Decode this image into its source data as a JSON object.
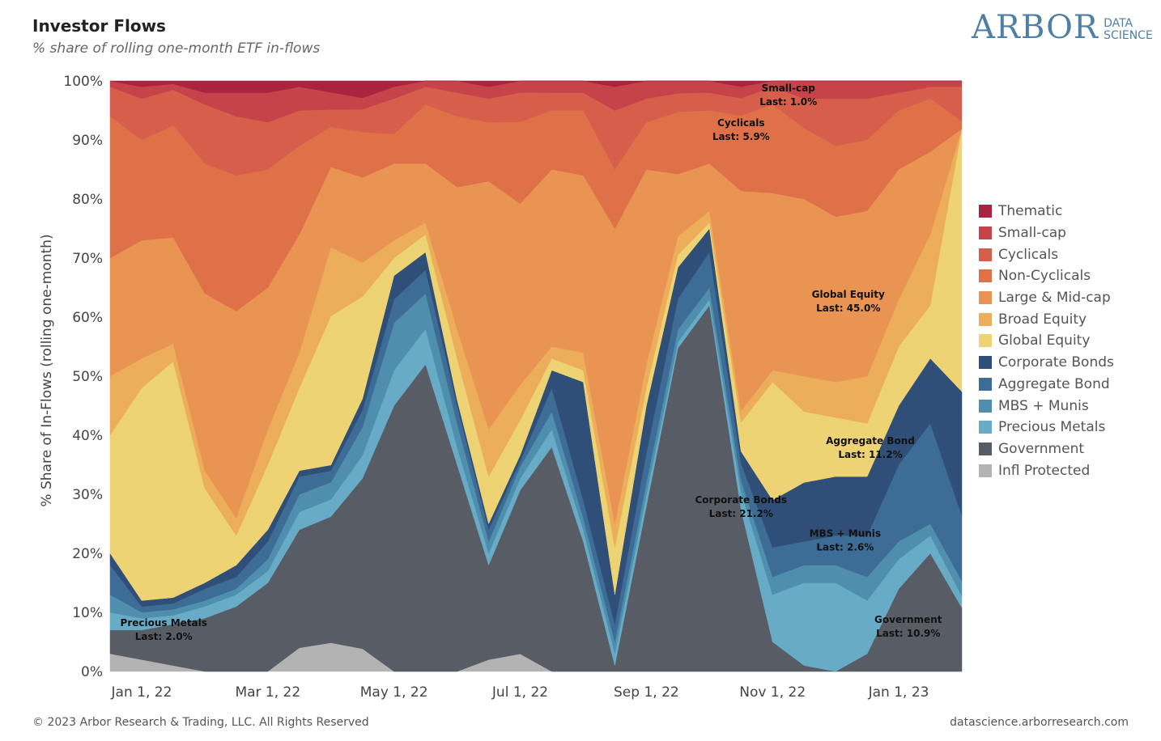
{
  "header": {
    "title": "Investor Flows",
    "subtitle": "% share of rolling one-month ETF in-flows"
  },
  "logo": {
    "main": "ARBOR",
    "sub_line1": "DATA",
    "sub_line2": "SCIENCE"
  },
  "footer": {
    "copyright": "© 2023 Arbor Research & Trading, LLC. All Rights Reserved",
    "url": "datascience.arborresearch.com"
  },
  "chart_data": {
    "type": "area",
    "stacked": true,
    "title": "Investor Flows",
    "subtitle": "% share of rolling one-month ETF in-flows",
    "xlabel": "",
    "ylabel": "% Share of In-Flows (rolling one-month)",
    "ylim": [
      0,
      100
    ],
    "yticks": [
      0,
      10,
      20,
      30,
      40,
      50,
      60,
      70,
      80,
      90,
      100
    ],
    "ytick_labels": [
      "0%",
      "10%",
      "20%",
      "30%",
      "40%",
      "50%",
      "60%",
      "70%",
      "80%",
      "90%",
      "100%"
    ],
    "x": [
      "Dec 21, 21",
      "Jan 1, 22",
      "Jan 15, 22",
      "Feb 1, 22",
      "Feb 15, 22",
      "Mar 1, 22",
      "Mar 15, 22",
      "Apr 1, 22",
      "Apr 15, 22",
      "May 1, 22",
      "May 15, 22",
      "Jun 1, 22",
      "Jun 15, 22",
      "Jul 1, 22",
      "Jul 15, 22",
      "Aug 1, 22",
      "Aug 15, 22",
      "Sep 1, 22",
      "Sep 15, 22",
      "Oct 1, 22",
      "Oct 15, 22",
      "Nov 1, 22",
      "Nov 15, 22",
      "Dec 1, 22",
      "Dec 15, 22",
      "Jan 1, 23",
      "Jan 15, 23",
      "Feb 1, 23"
    ],
    "xticks": [
      "Jan 1, 22",
      "Mar 1, 22",
      "May 1, 22",
      "Jul 1, 22",
      "Sep 1, 22",
      "Nov 1, 22",
      "Jan 1, 23"
    ],
    "series": [
      {
        "name": "Infl Protected",
        "color": "#b3b3b3",
        "values": [
          3,
          2,
          1,
          0,
          0,
          0,
          4,
          5,
          4,
          0,
          0,
          0,
          2,
          3,
          0,
          0,
          0,
          0,
          0,
          0,
          0,
          0,
          0,
          0,
          0,
          0,
          0,
          0
        ]
      },
      {
        "name": "Government",
        "color": "#585c64",
        "values": [
          4,
          5,
          7,
          9,
          11,
          15,
          20,
          22,
          30,
          45,
          52,
          35,
          16,
          28,
          38,
          22,
          1,
          28,
          52,
          62,
          28,
          5,
          1,
          0,
          3,
          14,
          20,
          10.9
        ]
      },
      {
        "name": "Precious Metals",
        "color": "#68abc7",
        "values": [
          3,
          2,
          1.5,
          2,
          2,
          2,
          3,
          3,
          4,
          6,
          6,
          3,
          2,
          2,
          3,
          2,
          2,
          2,
          1,
          1,
          3,
          8,
          14,
          15,
          9,
          5,
          3,
          2.0
        ]
      },
      {
        "name": "MBS + Munis",
        "color": "#4f8fad",
        "values": [
          3,
          1,
          1,
          1,
          1,
          2,
          3,
          3,
          5,
          8,
          6,
          4,
          2,
          2,
          3,
          2,
          2,
          2,
          2,
          2,
          2,
          3,
          3,
          3,
          4,
          3,
          2,
          2.6
        ]
      },
      {
        "name": "Aggregate Bond",
        "color": "#3d6d96",
        "values": [
          5,
          1,
          1,
          2,
          2,
          3,
          3,
          2,
          3,
          4,
          4,
          3,
          2,
          1,
          4,
          3,
          3,
          5,
          5,
          6,
          3,
          5,
          4,
          5,
          7,
          13,
          17,
          11.2
        ]
      },
      {
        "name": "Corporate Bonds",
        "color": "#2f4f78",
        "values": [
          2,
          1,
          1,
          1,
          2,
          2,
          1,
          1,
          2,
          4,
          3,
          1,
          1,
          1,
          3,
          20,
          5,
          8,
          5,
          4,
          2,
          8,
          10,
          10,
          10,
          10,
          11,
          21.2
        ]
      },
      {
        "name": "Global Equity",
        "color": "#edd374",
        "values": [
          20,
          36,
          40,
          16,
          5,
          11,
          14,
          26,
          18,
          3,
          3,
          7,
          8,
          6,
          2,
          2,
          8,
          3,
          2,
          1,
          5,
          20,
          12,
          10,
          9,
          10,
          9,
          45.0
        ]
      },
      {
        "name": "Broad Equity",
        "color": "#ecae5b",
        "values": [
          10,
          5,
          3,
          3,
          3,
          6,
          6,
          12,
          6,
          3,
          2,
          5,
          8,
          6,
          2,
          3,
          4,
          4,
          3,
          2,
          2,
          2,
          6,
          6,
          8,
          8,
          12,
          0
        ]
      },
      {
        "name": "Large & Mid-cap",
        "color": "#ea9453",
        "values": [
          20,
          20,
          18,
          30,
          35,
          24,
          20,
          14,
          15,
          13,
          10,
          24,
          42,
          31,
          30,
          30,
          50,
          33,
          10,
          8,
          38,
          30,
          30,
          28,
          28,
          22,
          14,
          0
        ]
      },
      {
        "name": "Non-Cyclicals",
        "color": "#df7149",
        "values": [
          24,
          17,
          19,
          22,
          23,
          20,
          15,
          7,
          8,
          5,
          10,
          12,
          10,
          14,
          10,
          11,
          10,
          8,
          10,
          9,
          13,
          15,
          12,
          12,
          12,
          10,
          9,
          1.3
        ]
      },
      {
        "name": "Cyclicals",
        "color": "#d65e4b",
        "values": [
          5,
          7,
          6,
          10,
          10,
          8,
          6,
          3,
          4,
          6,
          3,
          4,
          4,
          5,
          3,
          3,
          10,
          4,
          3,
          3,
          3,
          3,
          5,
          8,
          7,
          3,
          2,
          5.9
        ]
      },
      {
        "name": "Small-cap",
        "color": "#c6434a",
        "values": [
          1,
          2,
          1,
          2,
          4,
          5,
          4,
          3,
          2,
          2,
          1,
          2,
          2,
          2,
          2,
          2,
          4,
          3,
          2,
          2,
          2,
          1,
          3,
          3,
          3,
          2,
          1,
          1.0
        ]
      },
      {
        "name": "Thematic",
        "color": "#a9243e",
        "values": [
          0,
          1,
          0.5,
          2,
          2,
          2,
          1,
          2,
          3,
          1,
          0,
          0,
          1,
          0,
          0,
          0,
          1,
          0,
          0,
          0,
          1,
          0,
          0,
          0,
          0,
          0,
          0,
          0
        ]
      }
    ],
    "legend_order": [
      "Thematic",
      "Small-cap",
      "Cyclicals",
      "Non-Cyclicals",
      "Large & Mid-cap",
      "Broad Equity",
      "Global Equity",
      "Corporate Bonds",
      "Aggregate Bond",
      "MBS + Munis",
      "Precious Metals",
      "Government",
      "Infl Protected"
    ],
    "legend_position": "right",
    "annotations": [
      {
        "series": "Small-cap",
        "label": "Small-cap",
        "last": "Last: 1.0%",
        "x_index": 21.5,
        "y": 98.2
      },
      {
        "series": "Cyclicals",
        "label": "Cyclicals",
        "last": "Last: 5.9%",
        "x_index": 20,
        "y": 92.3
      },
      {
        "series": "Global Equity",
        "label": "Global Equity",
        "last": "Last: 45.0%",
        "x_index": 23.4,
        "y": 63.3
      },
      {
        "series": "Aggregate Bond",
        "label": "Aggregate Bond",
        "last": "Last: 11.2%",
        "x_index": 24.1,
        "y": 38.5
      },
      {
        "series": "Corporate Bonds",
        "label": "Corporate Bonds",
        "last": "Last: 21.2%",
        "x_index": 20,
        "y": 28.5
      },
      {
        "series": "MBS + Munis",
        "label": "MBS + Munis",
        "last": "Last: 2.6%",
        "x_index": 23.3,
        "y": 22.8
      },
      {
        "series": "Precious Metals",
        "label": "Precious Metals",
        "last": "Last: 2.0%",
        "x_index": 1.7,
        "y": 7.7
      },
      {
        "series": "Government",
        "label": "Government",
        "last": "Last: 10.9%",
        "x_index": 25.3,
        "y": 8.2
      }
    ]
  }
}
